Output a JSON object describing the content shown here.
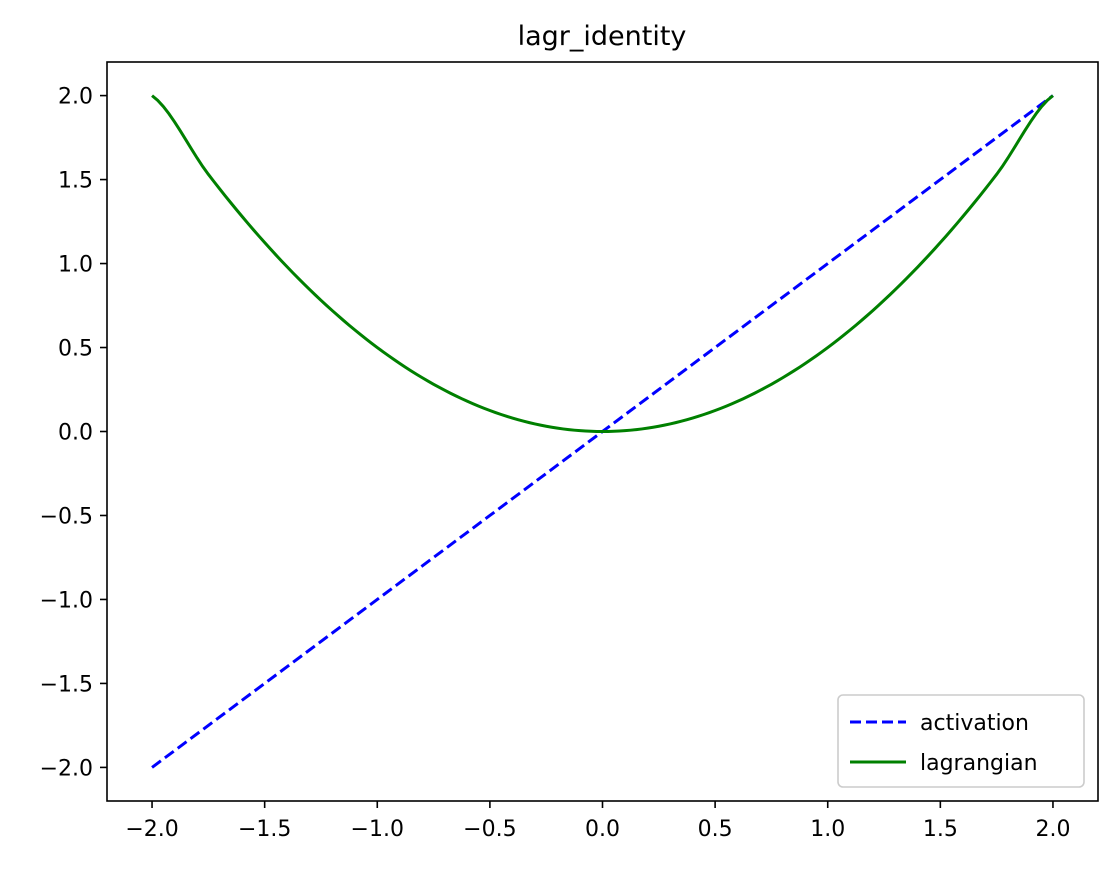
{
  "chart_data": {
    "type": "line",
    "title": "lagr_identity",
    "xlabel": "",
    "ylabel": "",
    "xlim": [
      -2.2,
      2.2
    ],
    "ylim": [
      -2.2,
      2.2
    ],
    "xticks": [
      -2.0,
      -1.5,
      -1.0,
      -0.5,
      0.0,
      0.5,
      1.0,
      1.5,
      2.0
    ],
    "yticks": [
      -2.0,
      -1.5,
      -1.0,
      -0.5,
      0.0,
      0.5,
      1.0,
      1.5,
      2.0
    ],
    "xtick_labels": [
      "−2.0",
      "−1.5",
      "−1.0",
      "−0.5",
      "0.0",
      "0.5",
      "1.0",
      "1.5",
      "2.0"
    ],
    "ytick_labels": [
      "−2.0",
      "−1.5",
      "−1.0",
      "−0.5",
      "0.0",
      "0.5",
      "1.0",
      "1.5",
      "2.0"
    ],
    "grid": false,
    "legend_position": "lower-right",
    "series": [
      {
        "name": "activation",
        "color": "#0000ff",
        "style": "dashed",
        "x": [
          -2.0,
          -1.5,
          -1.0,
          -0.5,
          0.0,
          0.5,
          1.0,
          1.5,
          2.0
        ],
        "y": [
          -2.0,
          -1.5,
          -1.0,
          -0.5,
          0.0,
          0.5,
          1.0,
          1.5,
          2.0
        ]
      },
      {
        "name": "lagrangian",
        "color": "#008000",
        "style": "solid",
        "x": [
          -2.0,
          -1.75,
          -1.5,
          -1.25,
          -1.0,
          -0.75,
          -0.5,
          -0.25,
          0.0,
          0.25,
          0.5,
          0.75,
          1.0,
          1.25,
          1.5,
          1.75,
          2.0
        ],
        "y": [
          2.0,
          1.53125,
          1.125,
          0.78125,
          0.5,
          0.28125,
          0.125,
          0.03125,
          0.0,
          0.03125,
          0.125,
          0.28125,
          0.5,
          0.78125,
          1.125,
          1.53125,
          2.0
        ]
      }
    ]
  }
}
